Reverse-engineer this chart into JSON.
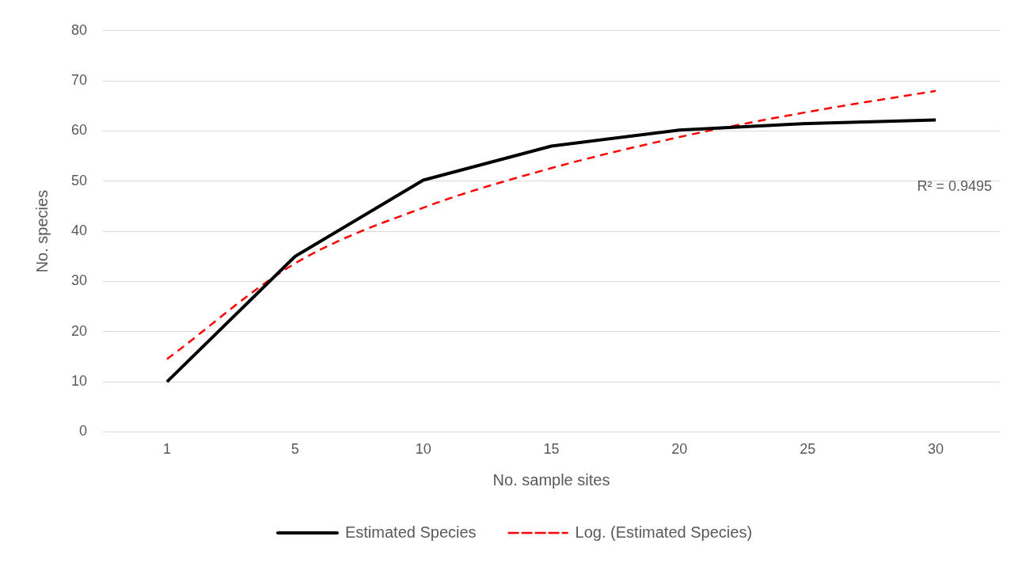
{
  "chart_data": {
    "type": "line",
    "xlabel": "No. sample sites",
    "ylabel": "No. species",
    "categories": [
      "1",
      "5",
      "10",
      "15",
      "20",
      "25",
      "30"
    ],
    "series": [
      {
        "name": "Estimated Species",
        "color": "#000000",
        "values": [
          10,
          35,
          50.2,
          57,
          60.2,
          61.5,
          62.2
        ],
        "line_style": "solid"
      },
      {
        "name": "Log. (Estimated Species)",
        "color": "#ff0000",
        "values": [
          14.5,
          33.6,
          44.7,
          52.6,
          58.8,
          63.8,
          68
        ],
        "line_style": "dashed"
      }
    ],
    "ylim": [
      0,
      80
    ],
    "yticks": [
      0,
      10,
      20,
      30,
      40,
      50,
      60,
      70,
      80
    ],
    "grid": "y",
    "legend": "bottom",
    "marker": "none",
    "annotations": [
      "R² = 0.9495"
    ]
  }
}
